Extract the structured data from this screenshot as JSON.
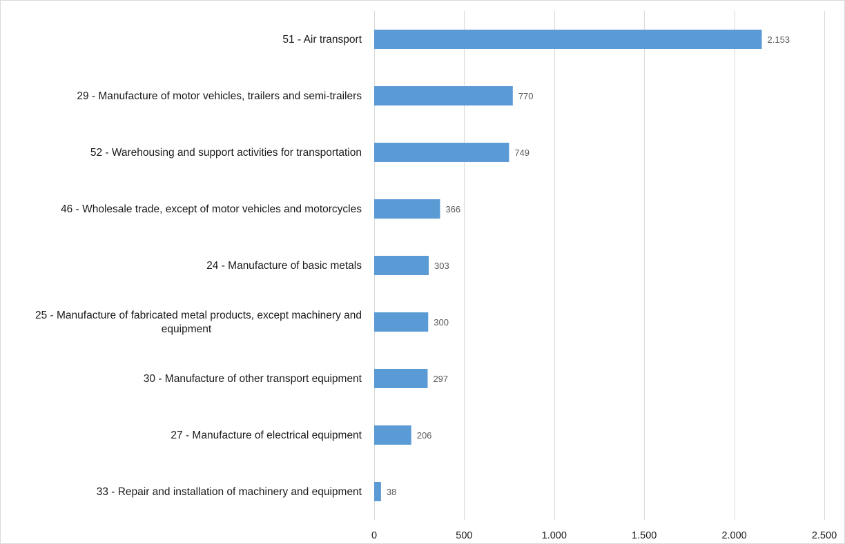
{
  "chart_data": {
    "type": "bar",
    "orientation": "horizontal",
    "categories": [
      "51 - Air transport",
      "29 - Manufacture of motor vehicles, trailers and semi-trailers",
      "52 - Warehousing and support activities for transportation",
      "46 - Wholesale trade, except of motor vehicles and motorcycles",
      "24 - Manufacture of basic metals",
      "25 - Manufacture of fabricated metal products, except machinery and equipment",
      "30 - Manufacture of other transport equipment",
      "27 - Manufacture of electrical equipment",
      "33 - Repair and installation of machinery and equipment"
    ],
    "category_lines": [
      [
        "51 - Air transport"
      ],
      [
        "29 - Manufacture of motor vehicles, trailers and semi-trailers"
      ],
      [
        "52 - Warehousing and support activities for transportation"
      ],
      [
        "46 - Wholesale trade, except of motor vehicles and motorcycles"
      ],
      [
        "24 - Manufacture of basic metals"
      ],
      [
        "25 - Manufacture of fabricated metal products, except machinery and",
        "equipment"
      ],
      [
        "30 - Manufacture of other transport equipment"
      ],
      [
        "27 - Manufacture of electrical equipment"
      ],
      [
        "33 - Repair and installation of machinery and equipment"
      ]
    ],
    "values": [
      2153,
      770,
      749,
      366,
      303,
      300,
      297,
      206,
      38
    ],
    "value_labels": [
      "2.153",
      "770",
      "749",
      "366",
      "303",
      "300",
      "297",
      "206",
      "38"
    ],
    "xlim": [
      0,
      2500
    ],
    "xticks": [
      0,
      500,
      1000,
      1500,
      2000,
      2500
    ],
    "xtick_labels": [
      "0",
      "500",
      "1.000",
      "1.500",
      "2.000",
      "2.500"
    ],
    "grid": true,
    "legend": "none",
    "title": "",
    "xlabel": "",
    "ylabel": "",
    "colors": {
      "bar": "#5b9bd5",
      "grid": "#d9d9d9",
      "value_label": "#595959",
      "text": "#1a1a1a"
    }
  }
}
